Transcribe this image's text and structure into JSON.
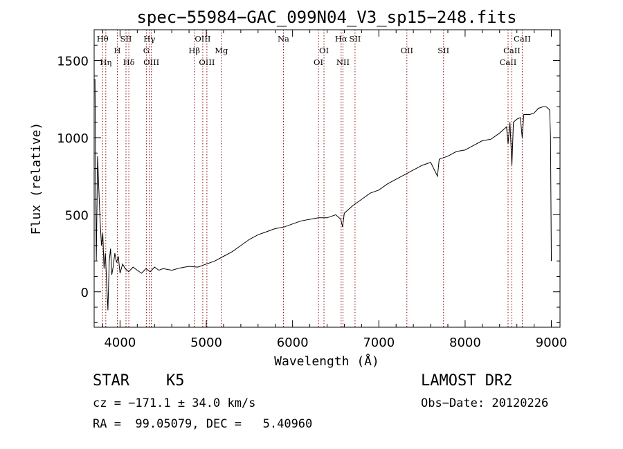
{
  "chart_data": {
    "type": "line",
    "title": "spec−55984−GAC_099N04_V3_sp15−248.fits",
    "xlabel": "Wavelength (Å)",
    "ylabel": "Flux (relative)",
    "xlim": [
      3700,
      9100
    ],
    "ylim": [
      -230,
      1700
    ],
    "x_ticks": [
      4000,
      5000,
      6000,
      7000,
      8000,
      9000
    ],
    "y_ticks": [
      0,
      500,
      1000,
      1500
    ],
    "y_tick_labels": [
      "0",
      "500",
      "1000",
      "1500"
    ],
    "line_color": "#8b0000",
    "spectral_lines": [
      {
        "label": "Hθ",
        "x": 3798,
        "row": 0
      },
      {
        "label": "Hη",
        "x": 3835,
        "row": 2
      },
      {
        "label": "SII",
        "x": 4069,
        "row": 0
      },
      {
        "label": "H",
        "x": 3969,
        "row": 1
      },
      {
        "label": "Hδ",
        "x": 4102,
        "row": 2
      },
      {
        "label": "Hγ",
        "x": 4340,
        "row": 0
      },
      {
        "label": "G",
        "x": 4305,
        "row": 1
      },
      {
        "label": "OIII",
        "x": 4363,
        "row": 2
      },
      {
        "label": "OIII",
        "x": 4959,
        "row": 0
      },
      {
        "label": "Hβ",
        "x": 4861,
        "row": 1
      },
      {
        "label": "OIII",
        "x": 5007,
        "row": 2
      },
      {
        "label": "Mg",
        "x": 5175,
        "row": 1
      },
      {
        "label": "Na",
        "x": 5894,
        "row": 0
      },
      {
        "label": "OI",
        "x": 6364,
        "row": 1
      },
      {
        "label": "OI",
        "x": 6300,
        "row": 2
      },
      {
        "label": "Hα",
        "x": 6563,
        "row": 0
      },
      {
        "label": "SII",
        "x": 6724,
        "row": 0
      },
      {
        "label": "NII",
        "x": 6584,
        "row": 2
      },
      {
        "label": "OII",
        "x": 7325,
        "row": 1
      },
      {
        "label": "SII",
        "x": 7750,
        "row": 1
      },
      {
        "label": "CaII",
        "x": 8662,
        "row": 0
      },
      {
        "label": "CaII",
        "x": 8542,
        "row": 1
      },
      {
        "label": "CaII",
        "x": 8498,
        "row": 2
      }
    ],
    "series": [
      {
        "x": [
          3710,
          3725,
          3740,
          3755,
          3770,
          3785,
          3800,
          3815,
          3830,
          3845,
          3860,
          3875,
          3890,
          3905,
          3920,
          3940,
          3960,
          3980,
          4000,
          4030,
          4060,
          4100,
          4150,
          4200,
          4250,
          4300,
          4350,
          4400,
          4450,
          4500,
          4600,
          4700,
          4800,
          4900,
          5000,
          5100,
          5200,
          5300,
          5400,
          5500,
          5600,
          5700,
          5800,
          5900,
          6000,
          6100,
          6200,
          6300,
          6400,
          6500,
          6560,
          6580,
          6600,
          6700,
          6800,
          6900,
          7000,
          7100,
          7200,
          7300,
          7400,
          7500,
          7600,
          7680,
          7700,
          7800,
          7900,
          8000,
          8100,
          8200,
          8300,
          8400,
          8480,
          8498,
          8520,
          8542,
          8560,
          8600,
          8640,
          8662,
          8680,
          8750,
          8800,
          8850,
          8900,
          8940,
          8960,
          8980,
          8990,
          9000
        ],
        "y": [
          1380,
          200,
          880,
          650,
          450,
          300,
          380,
          150,
          250,
          60,
          -120,
          200,
          280,
          110,
          160,
          250,
          190,
          230,
          120,
          180,
          150,
          130,
          160,
          140,
          120,
          150,
          130,
          160,
          140,
          150,
          140,
          155,
          165,
          160,
          180,
          200,
          230,
          260,
          300,
          340,
          370,
          390,
          410,
          420,
          440,
          460,
          470,
          480,
          480,
          500,
          470,
          420,
          510,
          560,
          600,
          640,
          660,
          700,
          730,
          760,
          790,
          820,
          840,
          750,
          860,
          880,
          910,
          920,
          950,
          980,
          990,
          1030,
          1070,
          960,
          1100,
          820,
          1100,
          1120,
          1130,
          1000,
          1150,
          1150,
          1160,
          1190,
          1200,
          1200,
          1190,
          1180,
          1000,
          200
        ]
      }
    ]
  },
  "footer": {
    "object_class": "STAR",
    "subclass": "K5",
    "survey": "LAMOST DR2",
    "cz": "cz = −171.1 ± 34.0 km/s",
    "obs_date": "Obs−Date: 20120226",
    "coords": "RA =  99.05079, DEC =   5.40960"
  }
}
